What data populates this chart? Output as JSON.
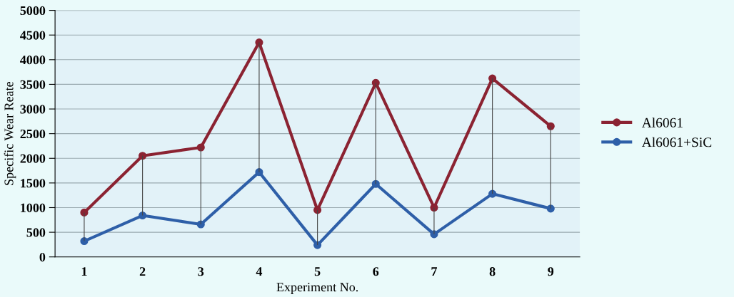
{
  "chart_data": {
    "type": "line",
    "xlabel": "Experiment No.",
    "ylabel": "Specific Wear Reate",
    "categories": [
      "1",
      "2",
      "3",
      "4",
      "5",
      "6",
      "7",
      "8",
      "9"
    ],
    "series": [
      {
        "name": "Al6061",
        "color": "#8b2332",
        "values": [
          900,
          2050,
          2220,
          4350,
          950,
          3530,
          1000,
          3620,
          2650
        ]
      },
      {
        "name": "Al6061+SiC",
        "color": "#2e5fa8",
        "values": [
          320,
          840,
          660,
          1720,
          240,
          1480,
          460,
          1280,
          980
        ],
        "errors": [
          [
            320,
            900
          ],
          [
            840,
            2050
          ],
          [
            660,
            2220
          ],
          [
            1720,
            4350
          ],
          [
            240,
            950
          ],
          [
            1480,
            3530
          ],
          [
            460,
            1000
          ],
          [
            1280,
            3620
          ],
          [
            980,
            2650
          ]
        ]
      }
    ],
    "ylim": [
      0,
      5000
    ],
    "yticks": [
      0,
      500,
      1000,
      1500,
      2000,
      2500,
      3000,
      3500,
      4000,
      4500,
      5000
    ],
    "grid": "y",
    "legend": "right",
    "marker": "circle",
    "line_style": "solid"
  }
}
